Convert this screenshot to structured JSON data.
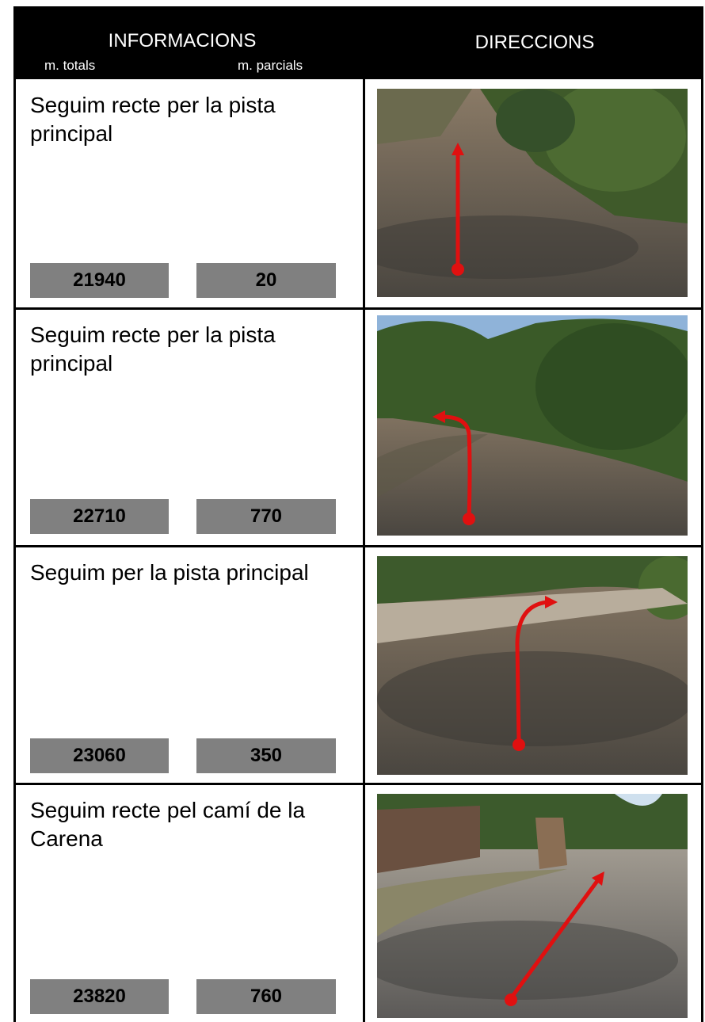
{
  "header": {
    "left_title": "INFORMACIONS",
    "left_sub1": "m. totals",
    "left_sub2": "m. parcials",
    "right_title": "DIRECCIONS"
  },
  "rows": [
    {
      "text": "Seguim recte per la pista principal",
      "totals": 21940,
      "parcials": 20
    },
    {
      "text": "Seguim recte per la pista principal",
      "totals": 22710,
      "parcials": 770
    },
    {
      "text": "Seguim per la pista principal",
      "totals": 23060,
      "parcials": 350
    },
    {
      "text": "Seguim recte pel camí de la Carena",
      "totals": 23820,
      "parcials": 760
    }
  ]
}
